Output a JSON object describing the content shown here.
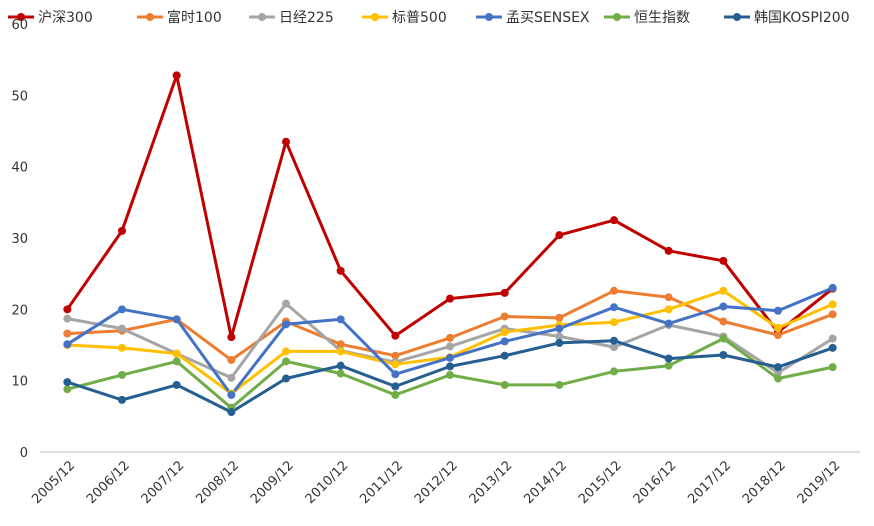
{
  "chart_data": {
    "type": "line",
    "title": "",
    "xlabel": "",
    "ylabel": "",
    "ylim": [
      0,
      60
    ],
    "yticks": [
      "0",
      "10",
      "20",
      "30",
      "40",
      "50",
      "60"
    ],
    "grid": false,
    "legend_position": "top",
    "categories": [
      "2005/12",
      "2006/12",
      "2007/12",
      "2008/12",
      "2009/12",
      "2010/12",
      "2011/12",
      "2012/12",
      "2013/12",
      "2014/12",
      "2015/12",
      "2016/12",
      "2017/12",
      "2018/12",
      "2019/12"
    ],
    "series": [
      {
        "name": "沪深300",
        "color": "#C00000",
        "values": [
          20.0,
          31.0,
          52.8,
          16.1,
          43.5,
          25.4,
          16.3,
          21.5,
          22.3,
          30.4,
          32.5,
          28.2,
          26.8,
          16.8,
          22.9
        ]
      },
      {
        "name": "富时100",
        "color": "#ED7D31",
        "values": [
          16.6,
          17.0,
          18.6,
          12.9,
          18.3,
          15.1,
          13.5,
          16.0,
          19.0,
          18.8,
          22.6,
          21.7,
          18.3,
          16.4,
          19.3
        ]
      },
      {
        "name": "日经225",
        "color": "#A5A5A5",
        "values": [
          18.7,
          17.3,
          13.8,
          10.4,
          20.8,
          14.2,
          12.6,
          14.8,
          17.3,
          16.2,
          14.7,
          17.8,
          16.2,
          11.1,
          15.9
        ]
      },
      {
        "name": "标普500",
        "color": "#FFC000",
        "values": [
          15.0,
          14.6,
          13.8,
          8.2,
          14.1,
          14.1,
          12.3,
          13.3,
          16.8,
          17.8,
          18.2,
          20.0,
          22.6,
          17.4,
          20.7
        ]
      },
      {
        "name": "孟买SENSEX",
        "color": "#4472C4",
        "values": [
          15.1,
          20.0,
          18.6,
          8.0,
          17.9,
          18.6,
          10.9,
          13.2,
          15.5,
          17.3,
          20.3,
          18.0,
          20.4,
          19.8,
          23.0
        ]
      },
      {
        "name": "恒生指数",
        "color": "#70AD47",
        "values": [
          8.8,
          10.8,
          12.7,
          6.2,
          12.7,
          11.0,
          8.0,
          10.8,
          9.4,
          9.4,
          11.3,
          12.1,
          15.9,
          10.3,
          11.9
        ]
      },
      {
        "name": "韩国KOSPI200",
        "color": "#255E91",
        "values": [
          9.8,
          7.3,
          9.4,
          5.6,
          10.3,
          12.1,
          9.2,
          12.0,
          13.5,
          15.3,
          15.6,
          13.1,
          13.6,
          11.9,
          14.6
        ]
      }
    ]
  }
}
